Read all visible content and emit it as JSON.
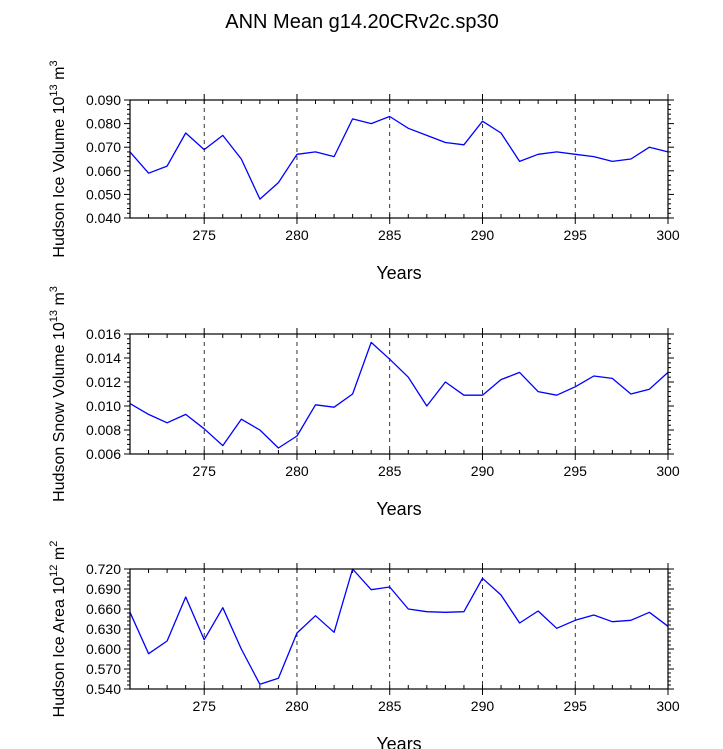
{
  "title": "ANN Mean g14.20CRv2c.sp30",
  "chart_data": [
    {
      "type": "line",
      "ylabel": "Hudson Ice Volume 10",
      "ylabel_exp": "13",
      "ylabel_unit": " m",
      "ylabel_unit_exp": "3",
      "xlabel": "Years",
      "xlim": [
        271,
        300
      ],
      "ylim": [
        0.04,
        0.09
      ],
      "yticks": [
        "0.040",
        "0.050",
        "0.060",
        "0.070",
        "0.080",
        "0.090"
      ],
      "xticks": [
        "275",
        "280",
        "285",
        "290",
        "295",
        "300"
      ],
      "grid_x": [
        275,
        280,
        285,
        290,
        295
      ],
      "line_color": "#0000ff",
      "series": [
        {
          "x": [
            271,
            272,
            273,
            274,
            275,
            276,
            277,
            278,
            279,
            280,
            281,
            282,
            283,
            284,
            285,
            286,
            287,
            288,
            289,
            290,
            291,
            292,
            293,
            294,
            295,
            296,
            297,
            298,
            299,
            300
          ],
          "values": [
            0.068,
            0.059,
            0.062,
            0.076,
            0.069,
            0.075,
            0.065,
            0.048,
            0.055,
            0.067,
            0.068,
            0.066,
            0.082,
            0.08,
            0.083,
            0.078,
            0.075,
            0.072,
            0.071,
            0.081,
            0.076,
            0.064,
            0.067,
            0.068,
            0.067,
            0.066,
            0.064,
            0.065,
            0.07,
            0.068
          ]
        }
      ]
    },
    {
      "type": "line",
      "ylabel": "Hudson Snow Volume 10",
      "ylabel_exp": "13",
      "ylabel_unit": " m",
      "ylabel_unit_exp": "3",
      "xlabel": "Years",
      "xlim": [
        271,
        300
      ],
      "ylim": [
        0.006,
        0.016
      ],
      "yticks": [
        "0.006",
        "0.008",
        "0.010",
        "0.012",
        "0.014",
        "0.016"
      ],
      "xticks": [
        "275",
        "280",
        "285",
        "290",
        "295",
        "300"
      ],
      "grid_x": [
        275,
        280,
        285,
        290,
        295
      ],
      "line_color": "#0000ff",
      "series": [
        {
          "x": [
            271,
            272,
            273,
            274,
            275,
            276,
            277,
            278,
            279,
            280,
            281,
            282,
            283,
            284,
            285,
            286,
            287,
            288,
            289,
            290,
            291,
            292,
            293,
            294,
            295,
            296,
            297,
            298,
            299,
            300
          ],
          "values": [
            0.0102,
            0.0093,
            0.0086,
            0.0093,
            0.0081,
            0.0067,
            0.0089,
            0.008,
            0.0065,
            0.0075,
            0.0101,
            0.0099,
            0.011,
            0.0153,
            0.0139,
            0.0124,
            0.01,
            0.012,
            0.0109,
            0.0109,
            0.0122,
            0.0128,
            0.0112,
            0.0109,
            0.0116,
            0.0125,
            0.0123,
            0.011,
            0.0114,
            0.0128
          ]
        }
      ]
    },
    {
      "type": "line",
      "ylabel": "Hudson Ice Area 10",
      "ylabel_exp": "12",
      "ylabel_unit": " m",
      "ylabel_unit_exp": "2",
      "xlabel": "Years",
      "xlim": [
        271,
        300
      ],
      "ylim": [
        0.54,
        0.72
      ],
      "yticks": [
        "0.540",
        "0.570",
        "0.600",
        "0.630",
        "0.660",
        "0.690",
        "0.720"
      ],
      "xticks": [
        "275",
        "280",
        "285",
        "290",
        "295",
        "300"
      ],
      "grid_x": [
        275,
        280,
        285,
        290,
        295
      ],
      "line_color": "#0000ff",
      "series": [
        {
          "x": [
            271,
            272,
            273,
            274,
            275,
            276,
            277,
            278,
            279,
            280,
            281,
            282,
            283,
            284,
            285,
            286,
            287,
            288,
            289,
            290,
            291,
            292,
            293,
            294,
            295,
            296,
            297,
            298,
            299,
            300
          ],
          "values": [
            0.655,
            0.593,
            0.612,
            0.678,
            0.614,
            0.662,
            0.6,
            0.547,
            0.556,
            0.624,
            0.65,
            0.625,
            0.72,
            0.689,
            0.693,
            0.66,
            0.656,
            0.655,
            0.656,
            0.706,
            0.681,
            0.639,
            0.657,
            0.631,
            0.643,
            0.651,
            0.641,
            0.643,
            0.655,
            0.634
          ]
        }
      ]
    }
  ]
}
